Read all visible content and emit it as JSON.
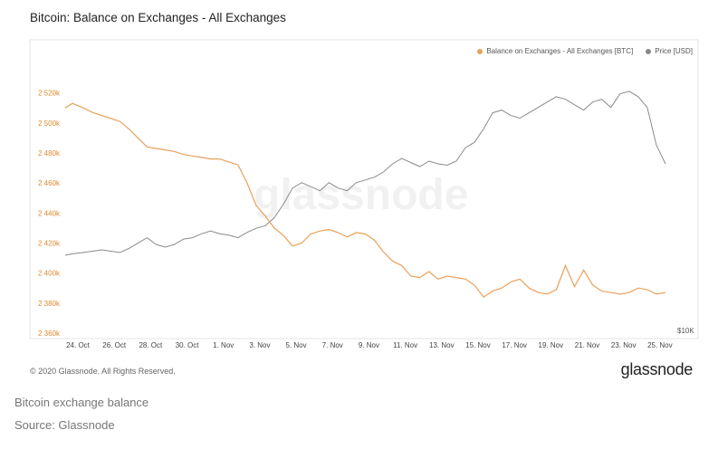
{
  "page": {
    "caption": "Bitcoin exchange balance",
    "source": "Source: Glassnode"
  },
  "card": {
    "copyright": "© 2020 Glassnode. All Rights Reserved.",
    "brand": "glassnode",
    "watermark": "glassnode"
  },
  "colors": {
    "balance": "#e8a15a",
    "price": "#8a8a8a"
  },
  "chart_data": {
    "type": "line",
    "title": "Bitcoin: Balance on Exchanges - All Exchanges",
    "legend": [
      "Balance on Exchanges - All Exchanges [BTC]",
      "Price [USD]"
    ],
    "legend_position": "top-right",
    "x_ticks": [
      "24. Oct",
      "26. Oct",
      "28. Oct",
      "30. Oct",
      "1. Nov",
      "3. Nov",
      "5. Nov",
      "7. Nov",
      "9. Nov",
      "11. Nov",
      "13. Nov",
      "15. Nov",
      "17. Nov",
      "19. Nov",
      "21. Nov",
      "23. Nov",
      "25. Nov"
    ],
    "y_ticks": [
      "2 360k",
      "2 380k",
      "2 400k",
      "2 420k",
      "2 440k",
      "2 460k",
      "2 480k",
      "2 500k",
      "2 520k"
    ],
    "y_range": [
      2360000,
      2530000
    ],
    "y2_tick": "$10K",
    "x_range_days": [
      0,
      33.5
    ],
    "series": [
      {
        "name": "Balance on Exchanges - All Exchanges [BTC]",
        "x": [
          0,
          0.4,
          1,
          1.5,
          2,
          2.5,
          3,
          3.5,
          4,
          4.5,
          5,
          5.5,
          6,
          6.5,
          7,
          7.5,
          8,
          8.5,
          9,
          9.5,
          10,
          10.5,
          11,
          11.5,
          12,
          12.5,
          13,
          13.5,
          14,
          14.5,
          15,
          15.5,
          16,
          16.5,
          17,
          17.5,
          18,
          18.5,
          19,
          19.5,
          20,
          20.5,
          21,
          21.5,
          22,
          22.5,
          23,
          23.5,
          24,
          24.5,
          25,
          25.5,
          26,
          26.5,
          27,
          27.5,
          28,
          28.5,
          29,
          29.5,
          30,
          30.5,
          31,
          31.5,
          32,
          32.5,
          33
        ],
        "values": [
          2510000,
          2513000,
          2510000,
          2507000,
          2505000,
          2503000,
          2501000,
          2496000,
          2490000,
          2484000,
          2483000,
          2482000,
          2481000,
          2479000,
          2478000,
          2477000,
          2476000,
          2476000,
          2474000,
          2472000,
          2460000,
          2445000,
          2438000,
          2430000,
          2425000,
          2418000,
          2420000,
          2426000,
          2428000,
          2429000,
          2427000,
          2424000,
          2427000,
          2426000,
          2422000,
          2414000,
          2408000,
          2405000,
          2398000,
          2397000,
          2401000,
          2396000,
          2398000,
          2397000,
          2396000,
          2392000,
          2384000,
          2388000,
          2390000,
          2394000,
          2396000,
          2390000,
          2387000,
          2386000,
          2389000,
          2405000,
          2391000,
          2402000,
          2392000,
          2388000,
          2387000,
          2386000,
          2387000,
          2390000,
          2389000,
          2386000,
          2387000
        ]
      },
      {
        "name": "Price [USD]",
        "x": [
          0,
          0.4,
          1,
          1.5,
          2,
          2.5,
          3,
          3.5,
          4,
          4.5,
          5,
          5.5,
          6,
          6.5,
          7,
          7.5,
          8,
          8.5,
          9,
          9.5,
          10,
          10.5,
          11,
          11.5,
          12,
          12.5,
          13,
          13.5,
          14,
          14.5,
          15,
          15.5,
          16,
          16.5,
          17,
          17.5,
          18,
          18.5,
          19,
          19.5,
          20,
          20.5,
          21,
          21.5,
          22,
          22.5,
          23,
          23.5,
          24,
          24.5,
          25,
          25.5,
          26,
          26.5,
          27,
          27.5,
          28,
          28.5,
          29,
          29.5,
          30,
          30.5,
          31,
          31.5,
          32,
          32.5,
          33
        ],
        "values": [
          12900,
          12950,
          13000,
          13050,
          13100,
          13050,
          13000,
          13150,
          13350,
          13550,
          13300,
          13200,
          13300,
          13500,
          13550,
          13700,
          13800,
          13700,
          13650,
          13550,
          13750,
          13900,
          14000,
          14300,
          14800,
          15400,
          15600,
          15450,
          15300,
          15600,
          15400,
          15300,
          15600,
          15700,
          15800,
          16000,
          16300,
          16500,
          16350,
          16200,
          16400,
          16300,
          16250,
          16400,
          16900,
          17100,
          17600,
          18200,
          18300,
          18100,
          18000,
          18200,
          18400,
          18600,
          18800,
          18700,
          18500,
          18300,
          18600,
          18700,
          18400,
          18900,
          19000,
          18800,
          18400,
          17000,
          16300
        ],
        "ylim": [
          10000,
          19500
        ]
      }
    ]
  }
}
